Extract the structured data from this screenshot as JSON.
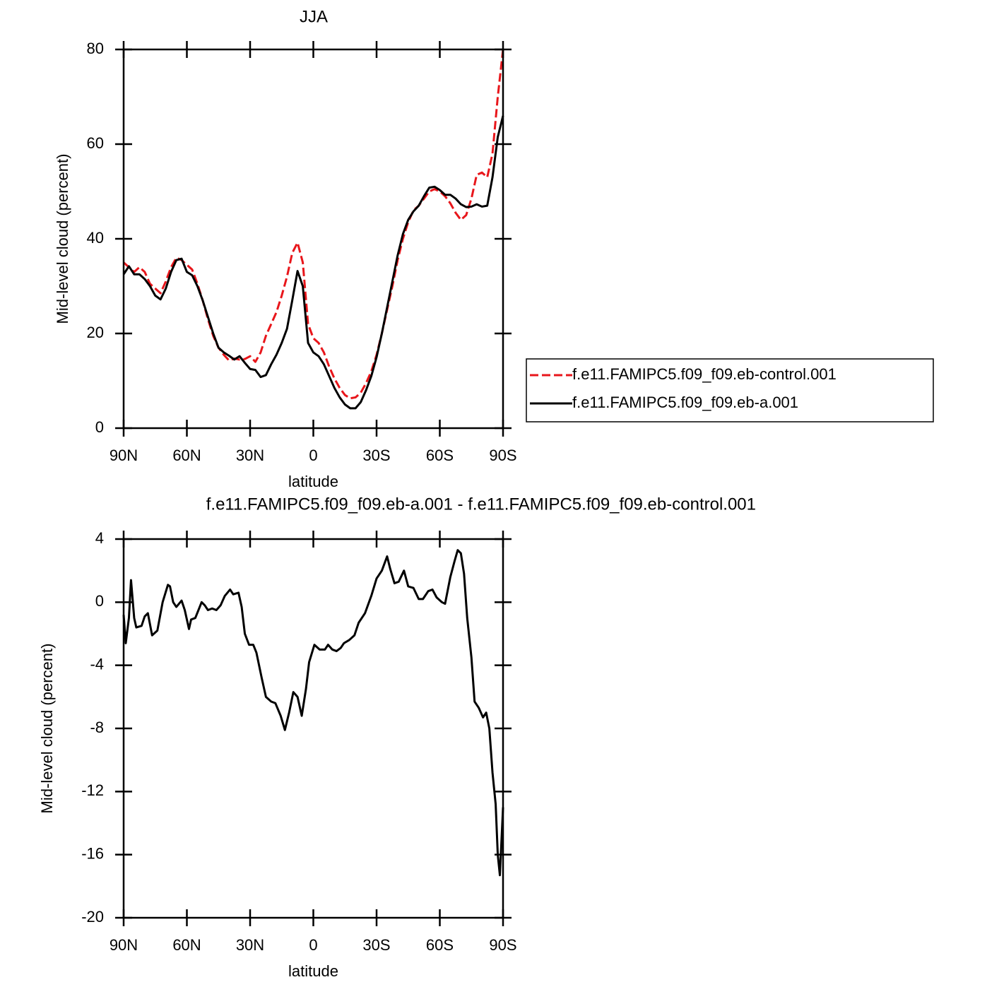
{
  "chart_data": [
    {
      "type": "line",
      "title": "JJA",
      "xlabel": "latitude",
      "ylabel": "Mid-level cloud (percent)",
      "x": [
        90,
        87.5,
        85,
        82.5,
        80,
        77.5,
        75,
        72.5,
        70,
        67.5,
        65,
        62.5,
        60,
        57.5,
        55,
        52.5,
        50,
        47.5,
        45,
        42.5,
        40,
        37.5,
        35,
        32.5,
        30,
        27.5,
        25,
        22.5,
        20,
        17.5,
        15,
        12.5,
        10,
        7.5,
        5,
        2.5,
        0,
        -2.5,
        -5,
        -7.5,
        -10,
        -12.5,
        -15,
        -17.5,
        -20,
        -22.5,
        -25,
        -27.5,
        -30,
        -32.5,
        -35,
        -37.5,
        -40,
        -42.5,
        -45,
        -47.5,
        -50,
        -52.5,
        -55,
        -57.5,
        -60,
        -62.5,
        -65,
        -67.5,
        -70,
        -72.5,
        -75,
        -77.5,
        -80,
        -82.5,
        -85,
        -87.5,
        -90
      ],
      "series": [
        {
          "name": "f.e11.FAMIPC5.f09_f09.eb-control.001",
          "color": "#e8161b",
          "line_style": "dashed",
          "values": [
            35,
            34,
            33,
            34,
            33,
            30.5,
            29.5,
            28.5,
            31,
            34,
            36,
            35.5,
            34.5,
            33.5,
            30.5,
            27,
            23,
            19.5,
            17,
            15.5,
            14.3,
            14.7,
            14.5,
            14.6,
            15.2,
            14,
            16,
            19.5,
            22,
            24.5,
            28,
            32,
            37,
            39.2,
            35,
            22,
            19,
            18,
            16,
            13,
            10.5,
            8.5,
            7,
            6.3,
            6.5,
            7.5,
            9.5,
            12,
            15.5,
            20,
            25,
            30,
            35.5,
            40,
            43.5,
            46,
            47,
            48.5,
            50,
            50.5,
            50,
            49,
            47.5,
            45.5,
            44,
            45,
            48.5,
            53.5,
            54,
            53,
            58,
            70,
            80
          ]
        },
        {
          "name": "f.e11.FAMIPC5.f09_f09.eb-a.001",
          "color": "#000000",
          "line_style": "solid",
          "values": [
            32.5,
            34.2,
            32.5,
            32.5,
            31.5,
            30,
            28,
            27.2,
            29.5,
            33,
            35.5,
            35.8,
            33,
            32.3,
            30,
            27,
            23.5,
            20,
            17,
            16,
            15.3,
            14.5,
            15.2,
            13.8,
            12.5,
            12.3,
            10.8,
            11.2,
            13.5,
            15.5,
            18,
            21,
            27,
            33.2,
            30,
            18,
            16,
            15.2,
            13.5,
            11,
            8.5,
            6.5,
            5,
            4.2,
            4.2,
            5.5,
            8,
            11,
            15,
            20,
            25.5,
            31,
            36.5,
            41,
            44,
            45.8,
            47,
            49,
            50.8,
            51,
            50.3,
            49.3,
            49.3,
            48.5,
            47.3,
            46.7,
            46.8,
            47.3,
            46.8,
            47,
            53,
            61.5,
            66
          ]
        }
      ],
      "xlim": [
        90,
        -90
      ],
      "xticks": [
        {
          "value": 90,
          "label": "90N"
        },
        {
          "value": 60,
          "label": "60N"
        },
        {
          "value": 30,
          "label": "30N"
        },
        0,
        {
          "value": -30,
          "label": "30S"
        },
        {
          "value": -60,
          "label": "60S"
        },
        {
          "value": -90,
          "label": "90S"
        }
      ],
      "ylim": [
        0,
        80
      ],
      "yticks": [
        0,
        20,
        40,
        60,
        80
      ],
      "legend": "right"
    },
    {
      "type": "line",
      "title": "f.e11.FAMIPC5.f09_f09.eb-a.001 - f.e11.FAMIPC5.f09_f09.eb-control.001",
      "xlabel": "latitude",
      "ylabel": "Mid-level cloud (percent)",
      "x": [
        90,
        89,
        87.5,
        86.5,
        85,
        84,
        81.5,
        80,
        78.5,
        76.5,
        74,
        71.5,
        69,
        68,
        66.5,
        65,
        62.5,
        61,
        59,
        58,
        56,
        53,
        51.5,
        50,
        48,
        46,
        44,
        42,
        39.5,
        38,
        35.5,
        34,
        32.5,
        30.5,
        28.5,
        27,
        24.5,
        22.5,
        20,
        18,
        15.5,
        13.5,
        11.5,
        9.5,
        7.5,
        5.5,
        3.5,
        2,
        -0.5,
        -3,
        -5.5,
        -7,
        -9,
        -11,
        -13,
        -14.5,
        -17,
        -19.5,
        -21.5,
        -24.5,
        -27.5,
        -30,
        -32.5,
        -35,
        -36.5,
        -38.5,
        -40.5,
        -43,
        -45,
        -47.5,
        -50,
        -52,
        -54.5,
        -56.5,
        -58.5,
        -61,
        -62.5,
        -65,
        -67,
        -68.5,
        -70,
        -71.5,
        -73,
        -75,
        -76.5,
        -78.5,
        -80.5,
        -82,
        -83.5,
        -85,
        -86.5,
        -87.5,
        -88.5,
        -90
      ],
      "color": "#000000",
      "values": [
        -0.8,
        -2.6,
        -1,
        1.4,
        -1,
        -1.6,
        -1.5,
        -0.9,
        -0.7,
        -2.1,
        -1.8,
        0,
        1.1,
        1,
        0,
        -0.3,
        0.1,
        -0.5,
        -1.7,
        -1.1,
        -1,
        0,
        -0.2,
        -0.5,
        -0.4,
        -0.5,
        -0.2,
        0.4,
        0.8,
        0.5,
        0.6,
        -0.3,
        -2,
        -2.7,
        -2.7,
        -3.2,
        -4.8,
        -6,
        -6.3,
        -6.4,
        -7.2,
        -8.1,
        -7,
        -5.7,
        -6,
        -7.2,
        -5.5,
        -3.8,
        -2.7,
        -3,
        -3,
        -2.7,
        -3,
        -3.1,
        -2.9,
        -2.6,
        -2.4,
        -2.1,
        -1.3,
        -0.7,
        0.4,
        1.5,
        2,
        2.9,
        2.1,
        1.2,
        1.3,
        2,
        1,
        0.9,
        0.2,
        0.2,
        0.7,
        0.8,
        0.3,
        0,
        -0.1,
        1.6,
        2.6,
        3.3,
        3.1,
        1.8,
        -1,
        -3.5,
        -6.3,
        -6.7,
        -7.3,
        -7,
        -8,
        -10.8,
        -12.8,
        -16,
        -17.3,
        -13
      ],
      "xlim": [
        90,
        -90
      ],
      "xticks": [
        {
          "value": 90,
          "label": "90N"
        },
        {
          "value": 60,
          "label": "60N"
        },
        {
          "value": 30,
          "label": "30N"
        },
        0,
        {
          "value": -30,
          "label": "30S"
        },
        {
          "value": -60,
          "label": "60S"
        },
        {
          "value": -90,
          "label": "90S"
        }
      ],
      "ylim": [
        -20,
        4
      ],
      "yticks": [
        -20,
        -16,
        -12,
        -8,
        -4,
        0,
        4
      ]
    }
  ]
}
